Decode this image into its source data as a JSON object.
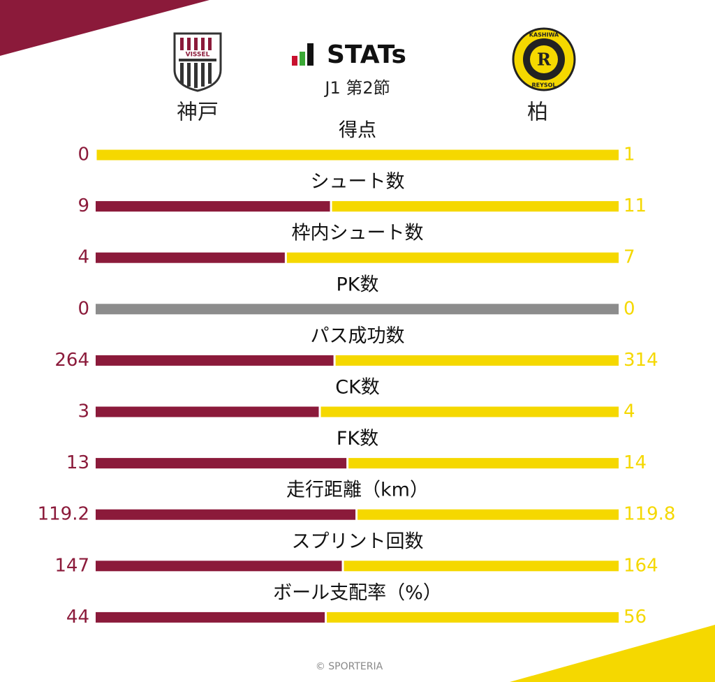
{
  "chart_data": {
    "type": "comparison",
    "title": "STATs",
    "subtitle": "J1 第2節",
    "logo_texts": [
      "VISSEL",
      "KASHIWA",
      "REYSOL"
    ],
    "categories": [
      "得点",
      "シュート数",
      "枠内シュート数",
      "PK数",
      "パス成功数",
      "CK数",
      "FK数",
      "走行距離（km）",
      "スプリント回数",
      "ボール支配率（%）"
    ],
    "series": [
      {
        "name": "神戸",
        "color": "#8b1a3a",
        "values": [
          0,
          9,
          4,
          0,
          264,
          3,
          13,
          119.2,
          147,
          44
        ]
      },
      {
        "name": "柏",
        "color": "#f5d800",
        "values": [
          1,
          11,
          7,
          0,
          314,
          4,
          14,
          119.8,
          164,
          56
        ]
      }
    ],
    "empty_color": "#8c8c8c",
    "footer": "© SPORTERIA"
  }
}
